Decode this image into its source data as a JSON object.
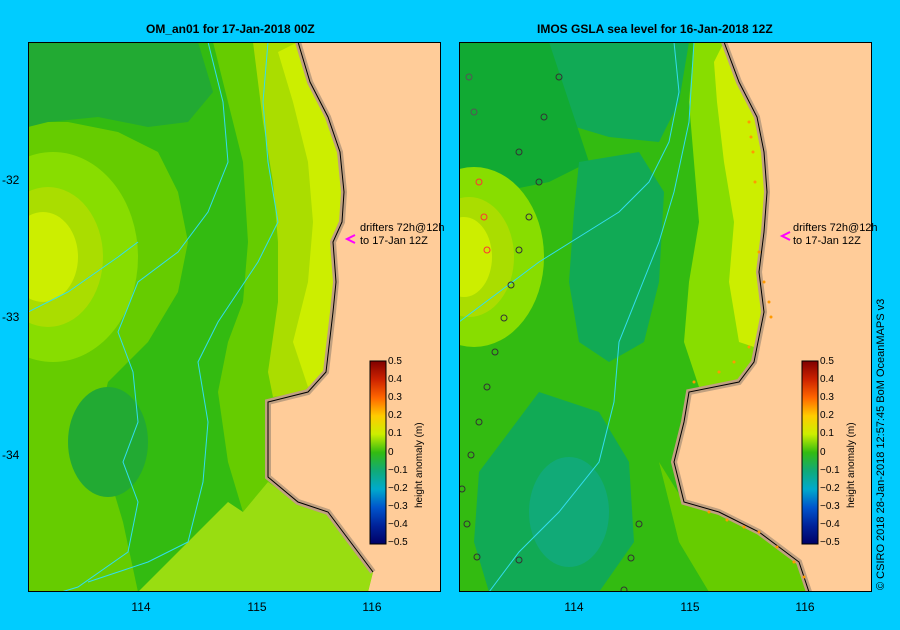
{
  "left_panel": {
    "title": "OM_an01  for 17-Jan-2018 00Z",
    "drifter_note_1": "drifters 72h@12h",
    "drifter_note_2": "to 17-Jan 12Z"
  },
  "right_panel": {
    "title": "IMOS  GSLA sea level  for 16-Jan-2018 12Z",
    "drifter_note_1": "drifters 72h@12h",
    "drifter_note_2": "to 17-Jan 12Z"
  },
  "y_ticks": [
    "-32",
    "-33",
    "-34"
  ],
  "x_ticks": [
    "114",
    "115",
    "116"
  ],
  "colorbar": {
    "title": "height anomaly (m)",
    "labels": [
      "0.5",
      "0.4",
      "0.3",
      "0.2",
      "0.1",
      "0",
      "−0.1",
      "−0.2",
      "−0.3",
      "−0.4",
      "−0.5"
    ]
  },
  "credit": "© CSIRO 2018   28-Jan-2018 12:57:45 BoM OceanMAPS v3",
  "colors": {
    "frame": "#00ccff",
    "land": "#ffcc99",
    "coast": "#c0a080",
    "arrow": "#ff00ff"
  }
}
